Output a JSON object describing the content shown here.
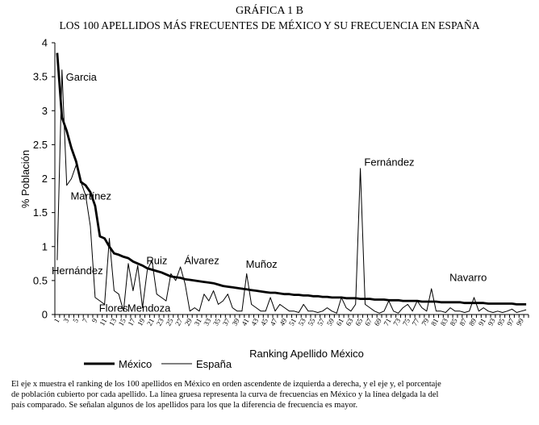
{
  "header": {
    "line1": "GRÁFICA 1 B",
    "line2": "LOS 100 APELLIDOS MÁS FRECUENTES DE MÉXICO Y SU FRECUENCIA EN ESPAÑA"
  },
  "caption": {
    "line1": "El eje x muestra el ranking de los 100 apellidos en México en orden ascendente de izquierda a derecha, y el eje y, el porcentaje",
    "line2": "de población cubierto por cada apellido. La línea gruesa representa la curva de frecuencias en México y la línea delgada la del",
    "line3": "país comparado. Se señalan algunos de los apellidos para los que la diferencia de frecuencia es mayor."
  },
  "chart_data": {
    "type": "line",
    "title": "",
    "xlabel": "Ranking Apellido México",
    "ylabel": "% Población",
    "ylim": [
      0,
      4
    ],
    "yticks": [
      "0",
      "0.5",
      "1",
      "1.5",
      "2",
      "2.5",
      "3",
      "3.5",
      "4"
    ],
    "xticks": [
      "1",
      "3",
      "5",
      "7",
      "9",
      "11",
      "13",
      "15",
      "17",
      "19",
      "21",
      "23",
      "25",
      "27",
      "29",
      "31",
      "33",
      "35",
      "37",
      "39",
      "41",
      "43",
      "45",
      "47",
      "49",
      "51",
      "53",
      "55",
      "57",
      "59",
      "61",
      "63",
      "65",
      "67",
      "69",
      "71",
      "73",
      "75",
      "77",
      "79",
      "81",
      "83",
      "85",
      "87",
      "89",
      "91",
      "93",
      "95",
      "97",
      "99"
    ],
    "x": [
      1,
      2,
      3,
      4,
      5,
      6,
      7,
      8,
      9,
      10,
      11,
      12,
      13,
      14,
      15,
      16,
      17,
      18,
      19,
      20,
      21,
      22,
      23,
      24,
      25,
      26,
      27,
      28,
      29,
      30,
      31,
      32,
      33,
      34,
      35,
      36,
      37,
      38,
      39,
      40,
      41,
      42,
      43,
      44,
      45,
      46,
      47,
      48,
      49,
      50,
      51,
      52,
      53,
      54,
      55,
      56,
      57,
      58,
      59,
      60,
      61,
      62,
      63,
      64,
      65,
      66,
      67,
      68,
      69,
      70,
      71,
      72,
      73,
      74,
      75,
      76,
      77,
      78,
      79,
      80,
      81,
      82,
      83,
      84,
      85,
      86,
      87,
      88,
      89,
      90,
      91,
      92,
      93,
      94,
      95,
      96,
      97,
      98,
      99,
      100
    ],
    "grid": false,
    "legend": "bottom-left",
    "series": [
      {
        "name": "México",
        "color": "#000000",
        "values": [
          3.85,
          2.9,
          2.7,
          2.45,
          2.25,
          1.95,
          1.9,
          1.8,
          1.6,
          1.15,
          1.12,
          1.0,
          0.9,
          0.88,
          0.85,
          0.83,
          0.78,
          0.75,
          0.72,
          0.68,
          0.66,
          0.64,
          0.62,
          0.59,
          0.56,
          0.55,
          0.54,
          0.52,
          0.51,
          0.5,
          0.49,
          0.48,
          0.47,
          0.46,
          0.44,
          0.42,
          0.41,
          0.4,
          0.39,
          0.38,
          0.37,
          0.36,
          0.35,
          0.34,
          0.33,
          0.32,
          0.32,
          0.31,
          0.3,
          0.3,
          0.29,
          0.29,
          0.28,
          0.28,
          0.27,
          0.27,
          0.26,
          0.26,
          0.25,
          0.25,
          0.25,
          0.24,
          0.24,
          0.24,
          0.23,
          0.23,
          0.23,
          0.22,
          0.22,
          0.22,
          0.21,
          0.21,
          0.21,
          0.2,
          0.2,
          0.2,
          0.2,
          0.19,
          0.19,
          0.19,
          0.19,
          0.18,
          0.18,
          0.18,
          0.18,
          0.18,
          0.17,
          0.17,
          0.17,
          0.17,
          0.17,
          0.16,
          0.16,
          0.16,
          0.16,
          0.16,
          0.16,
          0.15,
          0.15,
          0.15
        ]
      },
      {
        "name": "España",
        "color": "#000000",
        "values": [
          0.8,
          3.6,
          1.9,
          2.0,
          2.2,
          1.95,
          1.75,
          1.3,
          0.25,
          0.2,
          0.15,
          1.12,
          0.35,
          0.3,
          0.05,
          0.75,
          0.35,
          0.72,
          0.1,
          0.65,
          0.8,
          0.3,
          0.25,
          0.2,
          0.6,
          0.5,
          0.7,
          0.45,
          0.05,
          0.1,
          0.05,
          0.3,
          0.2,
          0.35,
          0.15,
          0.2,
          0.3,
          0.1,
          0.05,
          0.05,
          0.6,
          0.15,
          0.1,
          0.05,
          0.05,
          0.25,
          0.05,
          0.15,
          0.1,
          0.05,
          0.05,
          0.03,
          0.15,
          0.05,
          0.05,
          0.03,
          0.05,
          0.1,
          0.05,
          0.02,
          0.25,
          0.1,
          0.05,
          0.15,
          2.15,
          0.15,
          0.1,
          0.05,
          0.02,
          0.05,
          0.2,
          0.05,
          0.02,
          0.1,
          0.15,
          0.05,
          0.2,
          0.1,
          0.05,
          0.38,
          0.05,
          0.05,
          0.03,
          0.1,
          0.05,
          0.05,
          0.03,
          0.05,
          0.25,
          0.05,
          0.1,
          0.05,
          0.03,
          0.05,
          0.03,
          0.05,
          0.08,
          0.03,
          0.05,
          0.07
        ]
      }
    ],
    "annotations": [
      {
        "text": "Garcia",
        "x": 4,
        "y": 3.5
      },
      {
        "text": "Martínez",
        "x": 5,
        "y": 1.75
      },
      {
        "text": "Hernández",
        "x": 1,
        "y": 0.65
      },
      {
        "text": "Flores",
        "x": 11,
        "y": 0.1
      },
      {
        "text": "Mendoza",
        "x": 17,
        "y": 0.1
      },
      {
        "text": "Ruiz",
        "x": 21,
        "y": 0.8
      },
      {
        "text": "Álvarez",
        "x": 29,
        "y": 0.8
      },
      {
        "text": "Muñoz",
        "x": 42,
        "y": 0.75
      },
      {
        "text": "Fernández",
        "x": 67,
        "y": 2.25
      },
      {
        "text": "Navarro",
        "x": 85,
        "y": 0.55
      }
    ]
  }
}
